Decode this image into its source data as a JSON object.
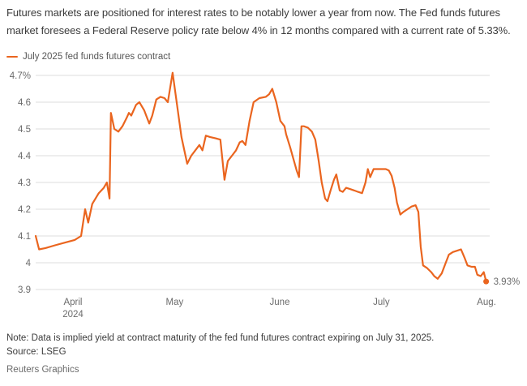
{
  "header": {
    "text": "Futures markets are positioned for interest rates to be notably lower a year from now. The Fed funds futures\nmarket foresees a Federal Reserve policy rate below 4% in 12 months compared with a current rate of 5.33%."
  },
  "legend": {
    "label": "July 2025 fed funds futures contract",
    "color": "#EA651F"
  },
  "chart_data": {
    "type": "line",
    "title": "",
    "x_unit": "days since first observation (late March 2024)",
    "y_unit": "implied yield, percent",
    "ylim": [
      3.9,
      4.7
    ],
    "grid": true,
    "legend_position": "top-left",
    "end_label": "3.93%",
    "y_ticks": [
      {
        "v": 4.7,
        "label": "4.7%"
      },
      {
        "v": 4.6,
        "label": "4.6"
      },
      {
        "v": 4.5,
        "label": "4.5"
      },
      {
        "v": 4.4,
        "label": "4.4"
      },
      {
        "v": 4.3,
        "label": "4.3"
      },
      {
        "v": 4.2,
        "label": "4.2"
      },
      {
        "v": 4.1,
        "label": "4.1"
      },
      {
        "v": 4.0,
        "label": "4"
      },
      {
        "v": 3.9,
        "label": "3.9"
      }
    ],
    "x_ticks": [
      {
        "d": 11,
        "label": "April",
        "sublabel": "2024"
      },
      {
        "d": 41,
        "label": "May"
      },
      {
        "d": 72,
        "label": "June"
      },
      {
        "d": 102,
        "label": "July"
      },
      {
        "d": 133,
        "label": "Aug."
      }
    ],
    "series": [
      {
        "name": "July 2025 fed funds futures contract",
        "color": "#EA651F",
        "points": [
          [
            0,
            4.1
          ],
          [
            1,
            4.05
          ],
          [
            2.9,
            4.055
          ],
          [
            5.7,
            4.065
          ],
          [
            8.6,
            4.075
          ],
          [
            11.5,
            4.085
          ],
          [
            13.4,
            4.1
          ],
          [
            14.6,
            4.2
          ],
          [
            15.5,
            4.15
          ],
          [
            16.7,
            4.22
          ],
          [
            18.6,
            4.26
          ],
          [
            20.1,
            4.28
          ],
          [
            21,
            4.3
          ],
          [
            21.8,
            4.24
          ],
          [
            22.2,
            4.56
          ],
          [
            23.2,
            4.5
          ],
          [
            24.4,
            4.49
          ],
          [
            25.6,
            4.51
          ],
          [
            26.8,
            4.54
          ],
          [
            27.5,
            4.56
          ],
          [
            28.2,
            4.55
          ],
          [
            29.6,
            4.59
          ],
          [
            30.6,
            4.6
          ],
          [
            32,
            4.57
          ],
          [
            33.5,
            4.52
          ],
          [
            34.4,
            4.55
          ],
          [
            35.6,
            4.61
          ],
          [
            36.8,
            4.62
          ],
          [
            38,
            4.615
          ],
          [
            39,
            4.6
          ],
          [
            40.4,
            4.71
          ],
          [
            41.6,
            4.6
          ],
          [
            43,
            4.47
          ],
          [
            44.7,
            4.37
          ],
          [
            45.9,
            4.4
          ],
          [
            47.1,
            4.42
          ],
          [
            48.3,
            4.44
          ],
          [
            49.2,
            4.42
          ],
          [
            50.2,
            4.475
          ],
          [
            51.4,
            4.47
          ],
          [
            53.1,
            4.465
          ],
          [
            54.5,
            4.46
          ],
          [
            55.7,
            4.31
          ],
          [
            56.7,
            4.38
          ],
          [
            57.9,
            4.4
          ],
          [
            59.1,
            4.42
          ],
          [
            60.2,
            4.45
          ],
          [
            61,
            4.455
          ],
          [
            61.9,
            4.44
          ],
          [
            63.1,
            4.53
          ],
          [
            64.3,
            4.6
          ],
          [
            66,
            4.615
          ],
          [
            67.9,
            4.62
          ],
          [
            68.9,
            4.63
          ],
          [
            69.8,
            4.65
          ],
          [
            71,
            4.6
          ],
          [
            72.2,
            4.53
          ],
          [
            73.4,
            4.51
          ],
          [
            73.9,
            4.48
          ],
          [
            75.1,
            4.43
          ],
          [
            76,
            4.39
          ],
          [
            77,
            4.345
          ],
          [
            77.7,
            4.32
          ],
          [
            78.4,
            4.51
          ],
          [
            79.1,
            4.51
          ],
          [
            80.3,
            4.505
          ],
          [
            81.5,
            4.49
          ],
          [
            82.5,
            4.46
          ],
          [
            83.5,
            4.38
          ],
          [
            84.4,
            4.3
          ],
          [
            85.4,
            4.24
          ],
          [
            86.1,
            4.23
          ],
          [
            87,
            4.27
          ],
          [
            88,
            4.31
          ],
          [
            88.7,
            4.33
          ],
          [
            89.7,
            4.27
          ],
          [
            90.6,
            4.265
          ],
          [
            91.6,
            4.28
          ],
          [
            92.8,
            4.275
          ],
          [
            94,
            4.27
          ],
          [
            95.1,
            4.265
          ],
          [
            96.3,
            4.26
          ],
          [
            97.3,
            4.3
          ],
          [
            98,
            4.35
          ],
          [
            98.7,
            4.32
          ],
          [
            99.7,
            4.35
          ],
          [
            100.9,
            4.35
          ],
          [
            102.1,
            4.35
          ],
          [
            103.3,
            4.35
          ],
          [
            104.2,
            4.345
          ],
          [
            105,
            4.325
          ],
          [
            105.9,
            4.28
          ],
          [
            106.6,
            4.225
          ],
          [
            107.6,
            4.18
          ],
          [
            108.5,
            4.19
          ],
          [
            109.7,
            4.2
          ],
          [
            110.9,
            4.21
          ],
          [
            112.1,
            4.215
          ],
          [
            112.9,
            4.19
          ],
          [
            113.6,
            4.06
          ],
          [
            114.3,
            3.99
          ],
          [
            115.5,
            3.98
          ],
          [
            116.7,
            3.965
          ],
          [
            117.6,
            3.95
          ],
          [
            118.6,
            3.94
          ],
          [
            119.8,
            3.96
          ],
          [
            121,
            4.0
          ],
          [
            121.9,
            4.03
          ],
          [
            123.1,
            4.04
          ],
          [
            124.3,
            4.045
          ],
          [
            125.5,
            4.05
          ],
          [
            126.5,
            4.02
          ],
          [
            127.4,
            3.99
          ],
          [
            128.6,
            3.985
          ],
          [
            129.6,
            3.985
          ],
          [
            130.3,
            3.955
          ],
          [
            131.3,
            3.95
          ],
          [
            132.2,
            3.965
          ],
          [
            132.9,
            3.93
          ]
        ]
      }
    ]
  },
  "footer": {
    "note": "Note: Data is implied yield at contract maturity of the fed fund futures contract expiring on July 31, 2025.",
    "source": "Source: LSEG",
    "credit": "Reuters Graphics"
  }
}
